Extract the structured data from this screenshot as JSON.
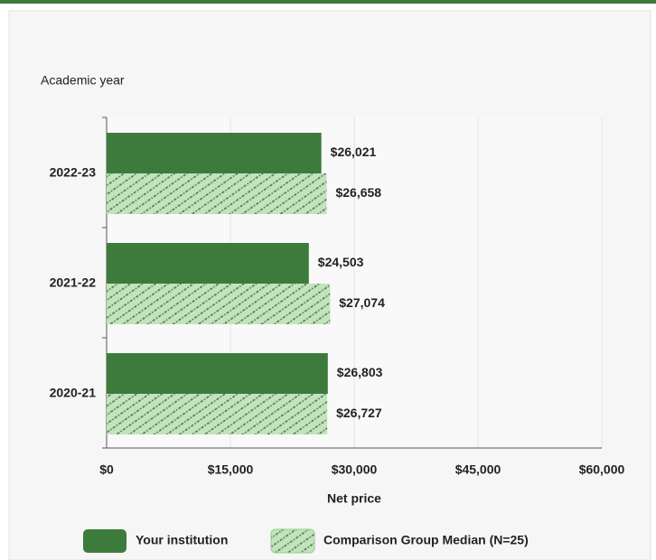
{
  "chart_data": {
    "type": "bar",
    "horizontal": true,
    "y_label": "Academic year",
    "x_label": "Net price",
    "categories": [
      "2022-23",
      "2021-22",
      "2020-21"
    ],
    "series": [
      {
        "name": "Your institution",
        "color": "#3d7b3d",
        "pattern": "solid",
        "values": [
          26021,
          24503,
          26803
        ],
        "value_labels": [
          "$26,021",
          "$24,503",
          "$26,803"
        ]
      },
      {
        "name": "Comparison Group Median (N=25)",
        "color": "#3d7b3d",
        "pattern": "hatch",
        "values": [
          26658,
          27074,
          26727
        ],
        "value_labels": [
          "$26,658",
          "$27,074",
          "$26,727"
        ]
      }
    ],
    "xlim": [
      0,
      60000
    ],
    "xticks": [
      {
        "value": 0,
        "label": "$0"
      },
      {
        "value": 15000,
        "label": "$15,000"
      },
      {
        "value": 30000,
        "label": "$30,000"
      },
      {
        "value": 45000,
        "label": "$45,000"
      },
      {
        "value": 60000,
        "label": "$60,000"
      }
    ],
    "grid": true
  }
}
